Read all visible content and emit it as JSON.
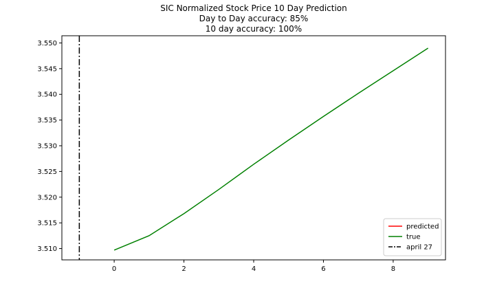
{
  "chart_data": {
    "type": "line",
    "title_lines": [
      "SIC Normalized Stock Price 10 Day Prediction",
      "Day to Day accuracy: 85%",
      "10 day accuracy: 100%"
    ],
    "xlabel": "",
    "ylabel": "",
    "xlim": [
      -1.5,
      9.5
    ],
    "ylim": [
      3.5078,
      3.5514
    ],
    "x_ticks": [
      0,
      2,
      4,
      6,
      8
    ],
    "y_ticks": [
      3.51,
      3.515,
      3.52,
      3.525,
      3.53,
      3.535,
      3.54,
      3.545,
      3.55
    ],
    "y_tick_labels": [
      "3.510",
      "3.515",
      "3.520",
      "3.525",
      "3.530",
      "3.535",
      "3.540",
      "3.545",
      "3.550"
    ],
    "grid": false,
    "legend_position": "lower-right",
    "series": [
      {
        "name": "predicted",
        "color": "#ff0000",
        "style": "solid",
        "x": [],
        "values": []
      },
      {
        "name": "true",
        "color": "#008000",
        "style": "solid",
        "x": [
          0,
          1,
          2,
          3,
          4,
          5,
          6,
          7,
          8,
          9
        ],
        "values": [
          3.5097,
          3.5125,
          3.5168,
          3.5215,
          3.5264,
          3.5311,
          3.5357,
          3.5402,
          3.5446,
          3.549
        ]
      }
    ],
    "vlines": [
      {
        "name": "april 27",
        "x": -1,
        "color": "#000000",
        "style": "dashdot"
      }
    ]
  }
}
